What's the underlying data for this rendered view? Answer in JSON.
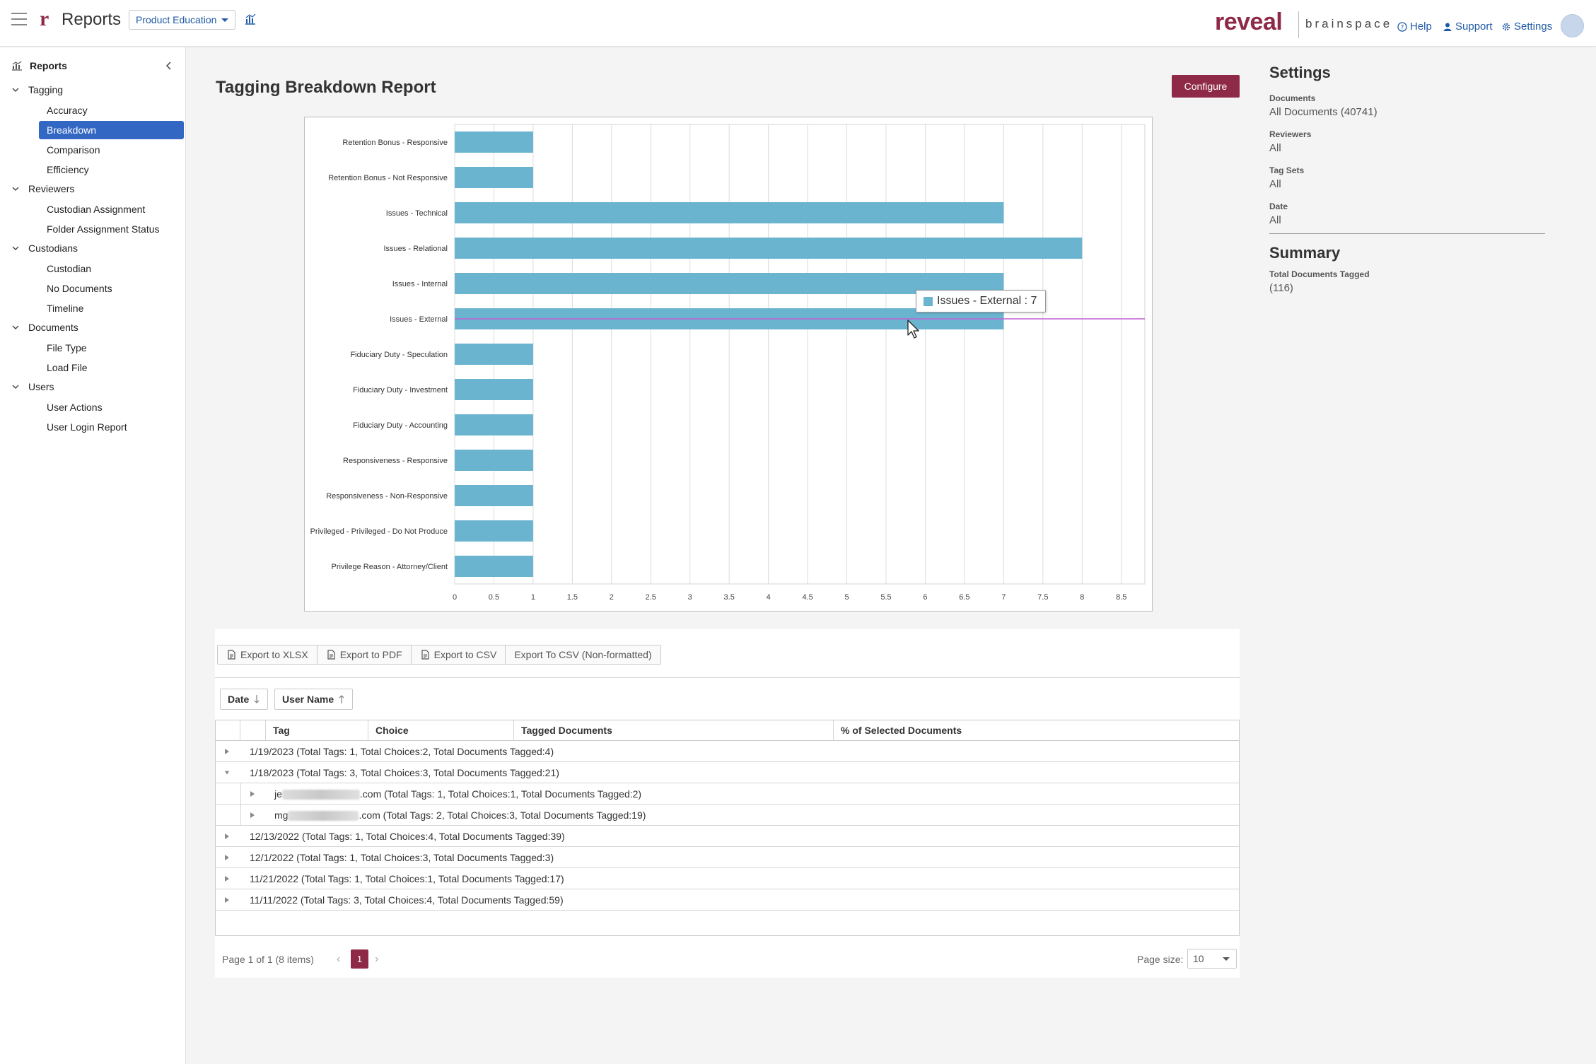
{
  "header": {
    "app_title": "Reports",
    "project": "Product Education",
    "brand_primary": "reveal",
    "brand_secondary": "brainspace",
    "links": {
      "help": "Help",
      "support": "Support",
      "settings": "Settings"
    }
  },
  "sidebar": {
    "title": "Reports",
    "groups": [
      {
        "label": "Tagging",
        "items": [
          "Accuracy",
          "Breakdown",
          "Comparison",
          "Efficiency"
        ]
      },
      {
        "label": "Reviewers",
        "items": [
          "Custodian Assignment",
          "Folder Assignment Status"
        ]
      },
      {
        "label": "Custodians",
        "items": [
          "Custodian",
          "No Documents",
          "Timeline"
        ]
      },
      {
        "label": "Documents",
        "items": [
          "File Type",
          "Load File"
        ]
      },
      {
        "label": "Users",
        "items": [
          "User Actions",
          "User Login Report"
        ]
      }
    ],
    "active_item": "Breakdown"
  },
  "page": {
    "title": "Tagging Breakdown Report",
    "configure_label": "Configure"
  },
  "chart_data": {
    "type": "bar",
    "orientation": "horizontal",
    "categories": [
      "Retention Bonus - Responsive",
      "Retention Bonus - Not Responsive",
      "Issues - Technical",
      "Issues - Relational",
      "Issues - Internal",
      "Issues - External",
      "Fiduciary Duty - Speculation",
      "Fiduciary Duty - Investment",
      "Fiduciary Duty - Accounting",
      "Responsiveness - Responsive",
      "Responsiveness - Non-Responsive",
      "Privileged - Privileged - Do Not Produce",
      "Privilege Reason - Attorney/Client"
    ],
    "values": [
      1,
      1,
      7,
      8,
      7,
      7,
      1,
      1,
      1,
      1,
      1,
      1,
      1
    ],
    "x_ticks": [
      "0",
      "0.5",
      "1",
      "1.5",
      "2",
      "2.5",
      "3",
      "3.5",
      "4",
      "4.5",
      "5",
      "5.5",
      "6",
      "6.5",
      "7",
      "7.5",
      "8",
      "8.5"
    ],
    "xlim": [
      0,
      8.8
    ],
    "grid": true,
    "bar_color": "#6ab4d0",
    "tooltip": "Issues - External : 7"
  },
  "settings": {
    "title": "Settings",
    "fields": [
      {
        "label": "Documents",
        "value": "All Documents (40741)"
      },
      {
        "label": "Reviewers",
        "value": "All"
      },
      {
        "label": "Tag Sets",
        "value": "All"
      },
      {
        "label": "Date",
        "value": "All"
      }
    ],
    "summary_title": "Summary",
    "summary_label": "Total Documents Tagged",
    "summary_value": "(116)"
  },
  "grid": {
    "exports": [
      "Export to XLSX",
      "Export to PDF",
      "Export to CSV",
      "Export To CSV (Non-formatted)"
    ],
    "group_by": [
      "Date",
      "User Name"
    ],
    "columns": [
      "Tag",
      "Choice",
      "Tagged Documents",
      "% of Selected Documents"
    ],
    "rows": [
      {
        "text": "1/19/2023 (Total Tags: 1, Total Choices:2, Total Documents Tagged:4)",
        "expanded": false
      },
      {
        "text": "1/18/2023 (Total Tags: 3, Total Choices:3, Total Documents Tagged:21)",
        "expanded": true
      },
      {
        "prefix": "je",
        "suffix": ".com (Total Tags: 1, Total Choices:1, Total Documents Tagged:2)",
        "sub": true
      },
      {
        "prefix": "mg",
        "suffix": ".com (Total Tags: 2, Total Choices:3, Total Documents Tagged:19)",
        "sub": true
      },
      {
        "text": "12/13/2022 (Total Tags: 1, Total Choices:4, Total Documents Tagged:39)",
        "expanded": false
      },
      {
        "text": "12/1/2022 (Total Tags: 1, Total Choices:3, Total Documents Tagged:3)",
        "expanded": false
      },
      {
        "text": "11/21/2022 (Total Tags: 1, Total Choices:1, Total Documents Tagged:17)",
        "expanded": false
      },
      {
        "text": "11/11/2022 (Total Tags: 3, Total Choices:4, Total Documents Tagged:59)",
        "expanded": false
      }
    ],
    "pager_text": "Page 1 of 1 (8 items)",
    "current_page": "1",
    "page_size_label": "Page size:",
    "page_size": "10"
  }
}
